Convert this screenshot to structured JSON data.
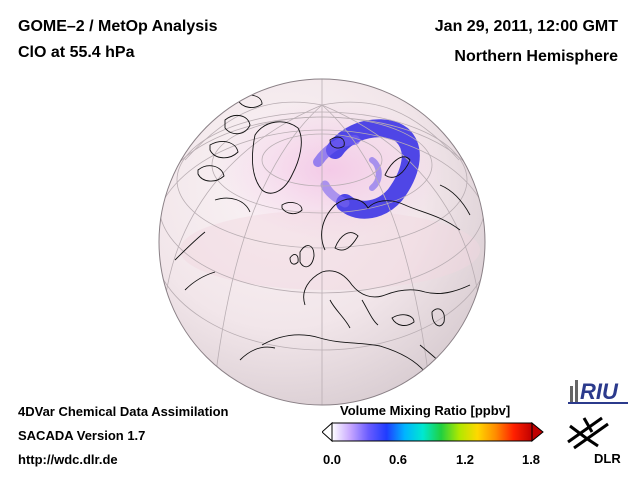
{
  "header": {
    "title": "GOME–2 / MetOp Analysis",
    "species": "ClO at 55.4 hPa",
    "datetime": "Jan 29, 2011, 12:00 GMT",
    "region": "Northern Hemisphere"
  },
  "footer": {
    "line1": "4DVar Chemical Data Assimilation",
    "line2": "SACADA Version 1.7",
    "url": "http://wdc.dlr.de"
  },
  "colorbar": {
    "title": "Volume Mixing Ratio [ppbv]",
    "ticks": [
      "0.0",
      "0.6",
      "1.2",
      "1.8"
    ],
    "range": [
      0.0,
      1.8
    ],
    "colors": [
      "#ffffff",
      "#c8a8ff",
      "#6a5cff",
      "#1f3cff",
      "#00b4ff",
      "#00e8d0",
      "#20d040",
      "#b0e800",
      "#ffd800",
      "#ff8c00",
      "#ff2000",
      "#c00000"
    ]
  },
  "logos": {
    "riu": "RIU",
    "dlr": "DLR"
  },
  "map": {
    "projection": "orthographic",
    "background_color": "#f3e8ea",
    "vortex_color": "#3a34e0"
  }
}
